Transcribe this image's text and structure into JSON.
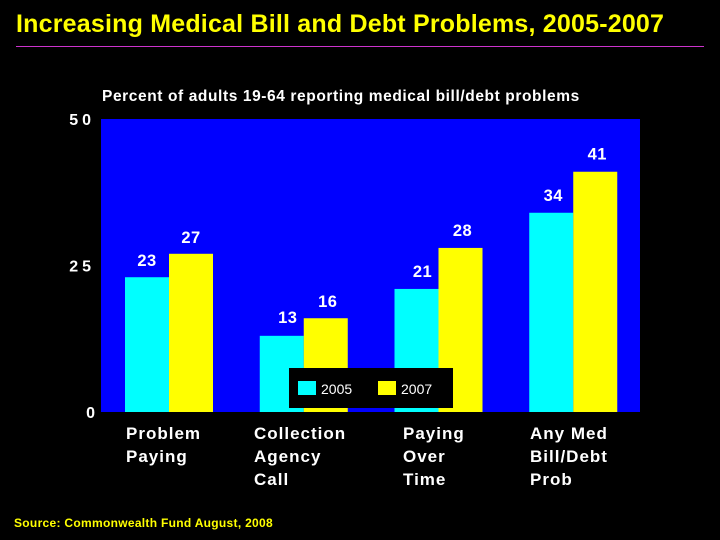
{
  "slide": {
    "title": "Increasing Medical Bill and Debt Problems, 2005-2007",
    "source": "Source: Commonwealth Fund August, 2008"
  },
  "colors": {
    "background": "#000000",
    "plot_area": "#0000ff",
    "title": "#ffff00",
    "rule": "#cc33cc",
    "series_2005": "#00ffff",
    "series_2007": "#ffff00"
  },
  "chart_data": {
    "type": "bar",
    "title": "Percent of adults 19-64 reporting medical bill/debt problems",
    "categories": [
      [
        "Problem",
        "Paying"
      ],
      [
        "Collection",
        "Agency",
        "Call"
      ],
      [
        "Paying",
        "Over",
        "Time"
      ],
      [
        "Any Med",
        "Bill/Debt",
        "Prob"
      ]
    ],
    "series": [
      {
        "name": "2005",
        "values": [
          23,
          13,
          21,
          34
        ]
      },
      {
        "name": "2007",
        "values": [
          27,
          16,
          28,
          41
        ]
      }
    ],
    "yticks": [
      "0",
      "25",
      "50"
    ],
    "ylim": [
      0,
      50
    ],
    "xlabel": "",
    "ylabel": "",
    "legend": {
      "placement": "bottom-center-inside",
      "entries": [
        "2005",
        "2007"
      ]
    }
  }
}
